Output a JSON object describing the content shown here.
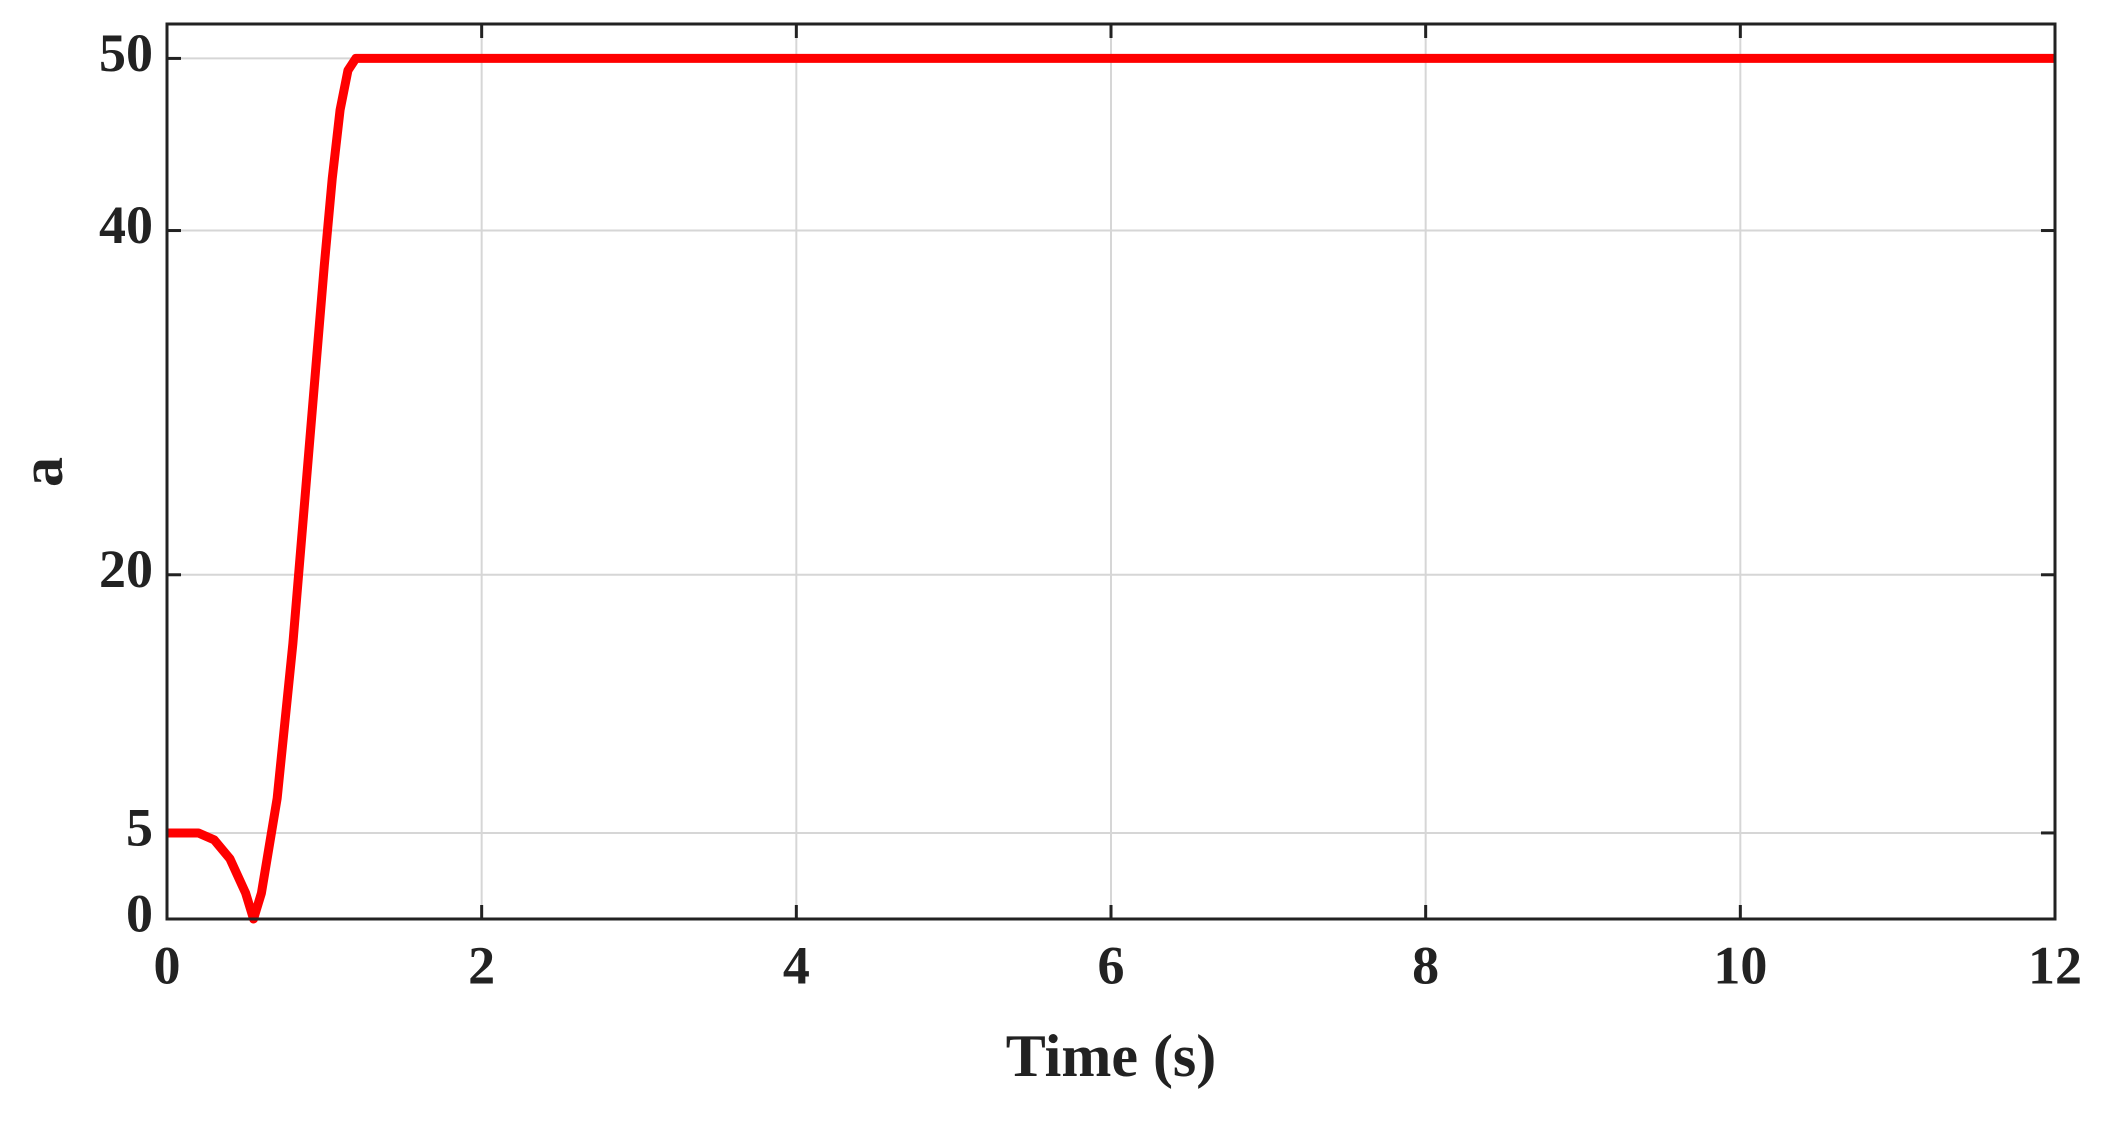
{
  "chart_data": {
    "type": "line",
    "x_label": "Time (s)",
    "y_label": "a",
    "series": [
      {
        "name": "a",
        "color": "#ff0000",
        "x": [
          0,
          0.2,
          0.3,
          0.4,
          0.5,
          0.55,
          0.6,
          0.7,
          0.8,
          0.9,
          1.0,
          1.05,
          1.1,
          1.15,
          1.2,
          1.3,
          12
        ],
        "values": [
          5,
          5,
          4.6,
          3.5,
          1.5,
          0,
          1.5,
          7,
          16,
          27,
          38,
          43,
          47,
          49.3,
          50,
          50,
          50
        ]
      }
    ],
    "xlim": [
      0,
      12
    ],
    "xticks": [
      0,
      2,
      4,
      6,
      8,
      10,
      12
    ],
    "ylim": [
      0,
      52
    ],
    "yticks": [
      0,
      5,
      20,
      40,
      50
    ],
    "grid": true
  }
}
